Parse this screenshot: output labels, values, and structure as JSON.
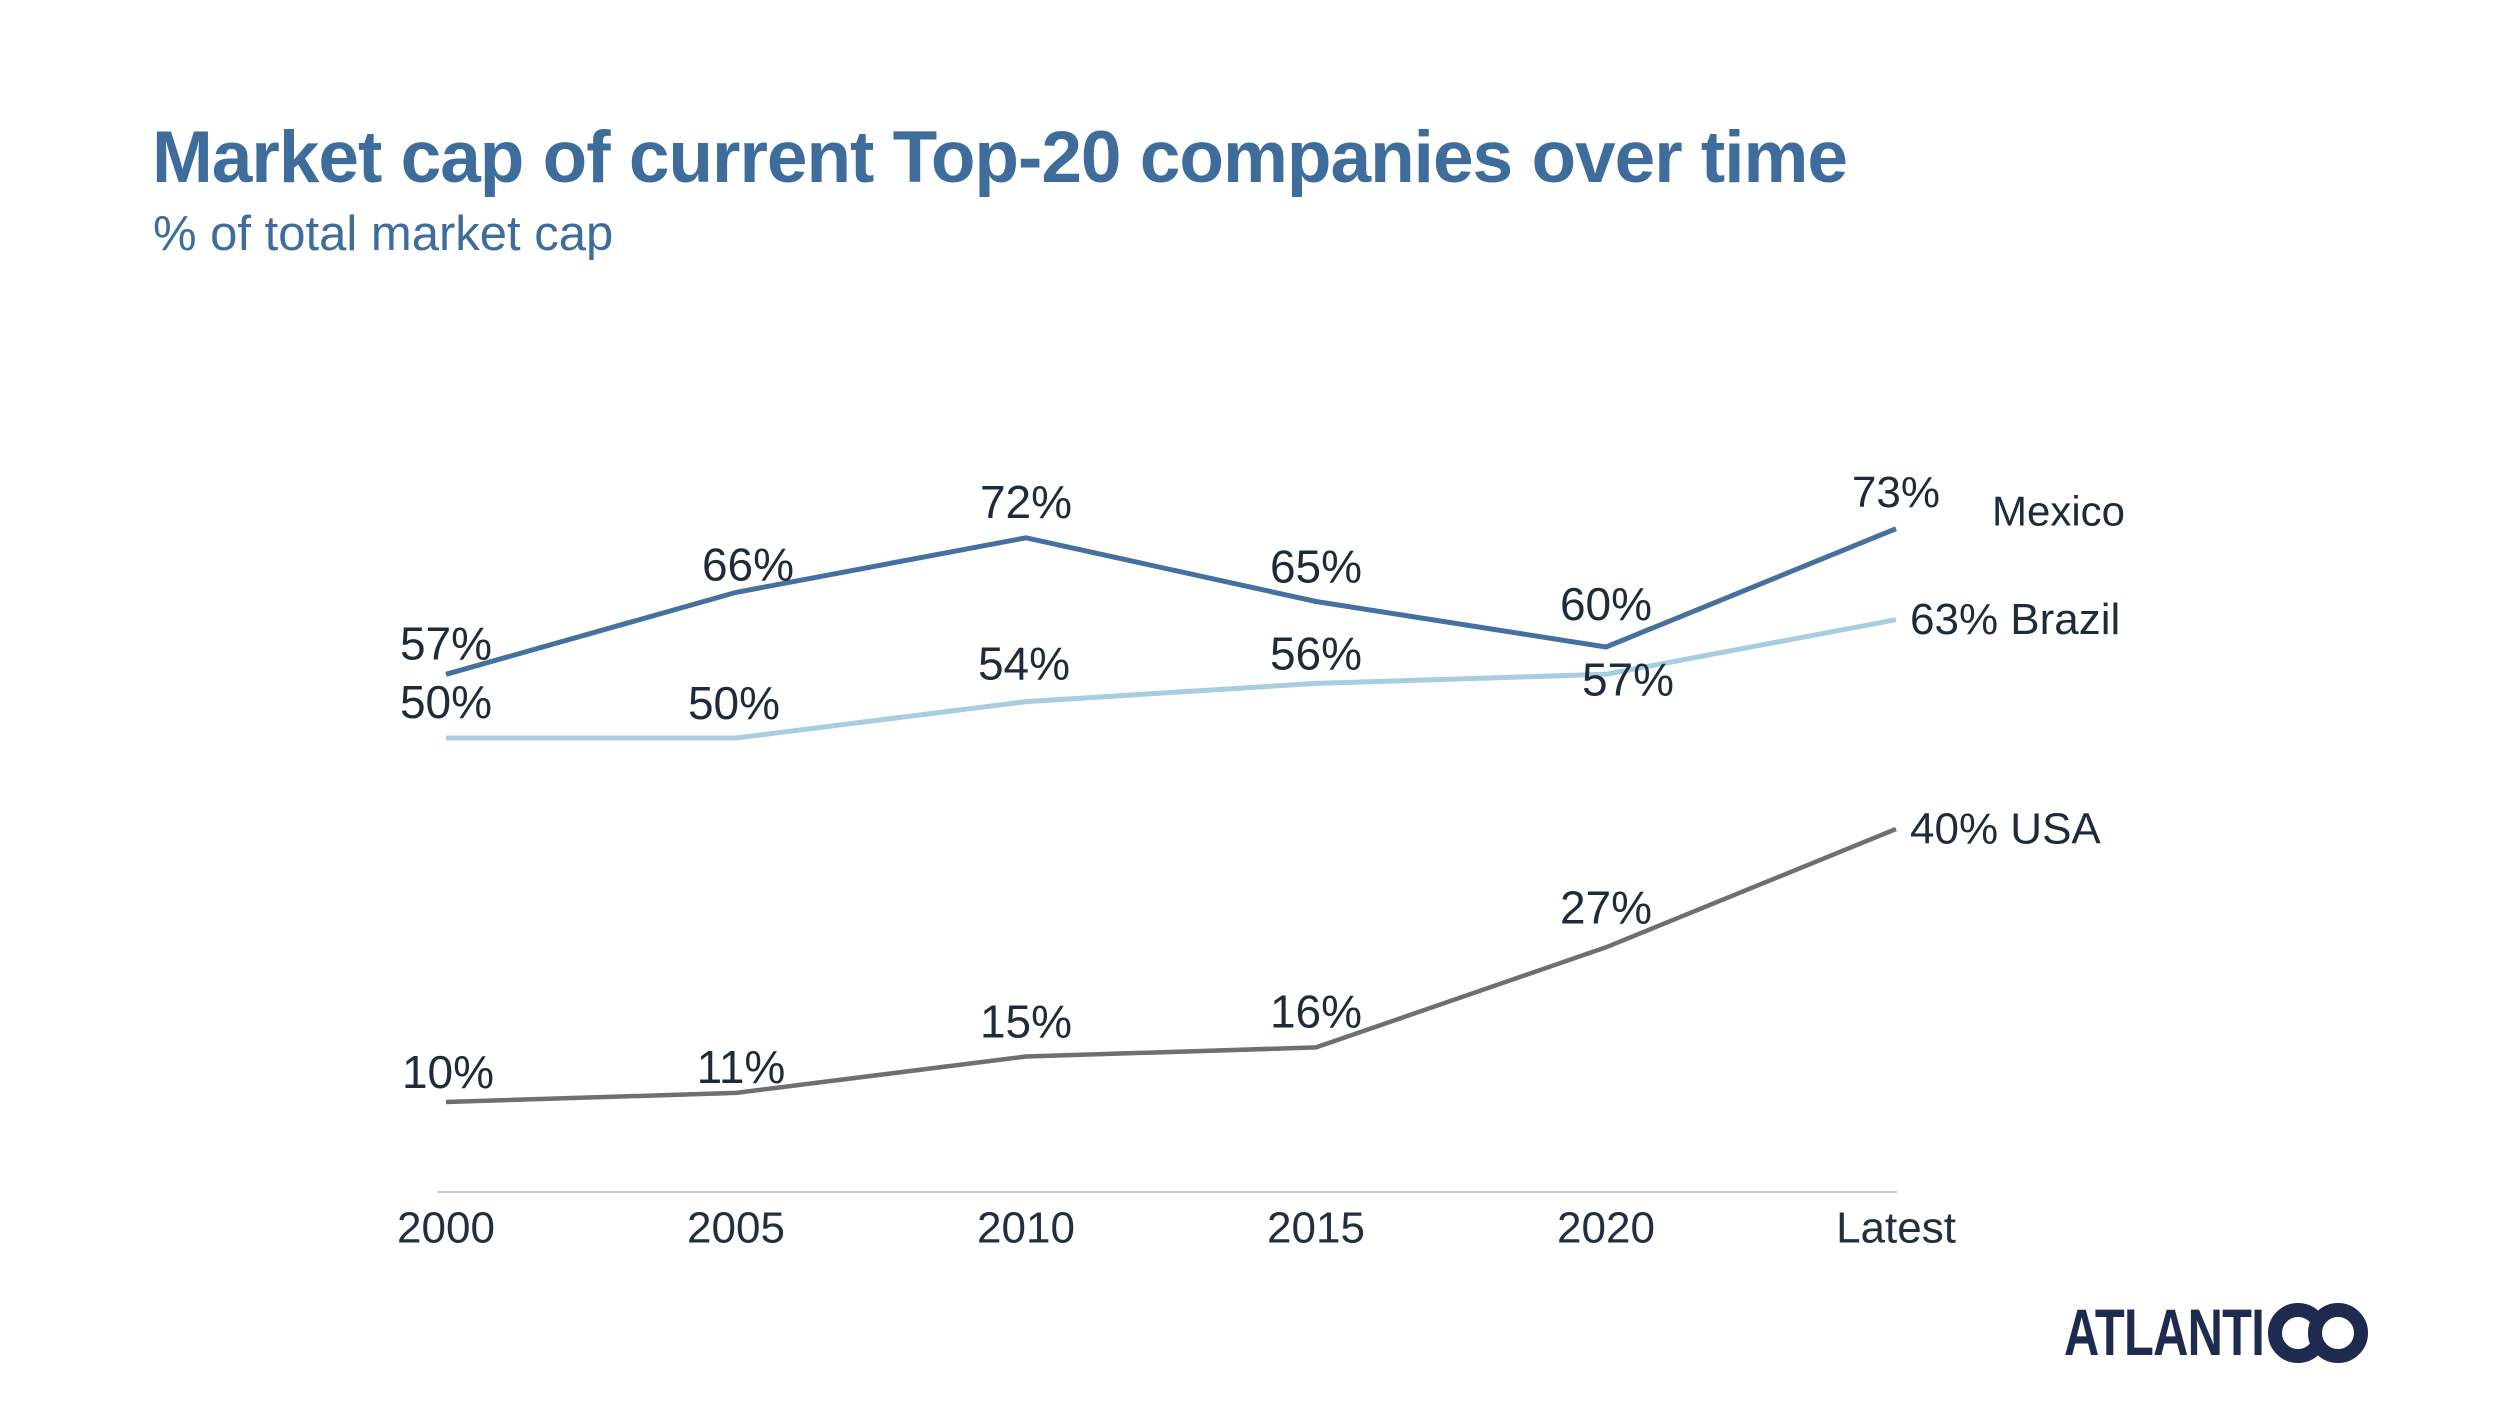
{
  "title": "Market cap of current Top-20 companies over time",
  "subtitle": "% of total market cap",
  "colors": {
    "title": "#3e6d9c",
    "label_text": "#1f2b3a",
    "axis_label_text": "#242e3e",
    "axis_line": "#c9c9cb",
    "logo": "#1f2b4e"
  },
  "logo": {
    "brand": "ATLANTICO"
  },
  "chart_data": {
    "type": "line",
    "title": "Market cap of current Top-20 companies over time",
    "subtitle": "% of total market cap",
    "unit": "%",
    "categories": [
      "2000",
      "2005",
      "2010",
      "2015",
      "2020",
      "Latest"
    ],
    "series": [
      {
        "name": "Mexico",
        "color": "#44719f",
        "values": [
          57,
          66,
          72,
          65,
          60,
          73
        ],
        "point_labels": [
          "57%",
          "66%",
          "72%",
          "65%",
          "60%"
        ],
        "end_label": "73%",
        "legend_label": "Mexico"
      },
      {
        "name": "Brazil",
        "color": "#a8cddf",
        "values": [
          50,
          50,
          54,
          56,
          57,
          63
        ],
        "point_labels": [
          "50%",
          "50%",
          "54%",
          "56%",
          "57%"
        ],
        "end_label": "63% Brazil"
      },
      {
        "name": "USA",
        "color": "#6f6f71",
        "values": [
          10,
          11,
          15,
          16,
          27,
          40
        ],
        "point_labels": [
          "10%",
          "11%",
          "15%",
          "16%",
          "27%"
        ],
        "end_label": "40% USA"
      }
    ],
    "ylim": [
      0,
      100
    ],
    "grid": false,
    "legend_position": "right-inline",
    "x_axis_line": true
  }
}
